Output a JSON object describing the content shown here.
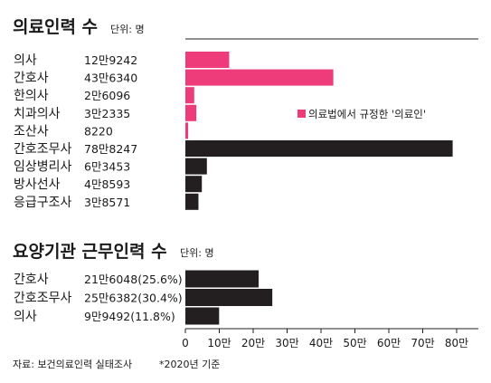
{
  "chart_data": [
    {
      "type": "bar",
      "orientation": "horizontal",
      "title": "의료인력 수",
      "unit": "단위: 명",
      "categories": [
        "의사",
        "간호사",
        "한의사",
        "치과의사",
        "조산사",
        "간호조무사",
        "임상병리사",
        "방사선사",
        "응급구조사"
      ],
      "value_labels": [
        "12만9242",
        "43만6340",
        "2만6096",
        "3만2335",
        "8220",
        "78만8247",
        "6만3453",
        "4만8593",
        "3만8571"
      ],
      "values": [
        129242,
        436340,
        26096,
        32335,
        8220,
        788247,
        63453,
        48593,
        38571
      ],
      "bar_colors": [
        "#ee3b7a",
        "#ee3b7a",
        "#ee3b7a",
        "#ee3b7a",
        "#ee3b7a",
        "#231f20",
        "#231f20",
        "#231f20",
        "#231f20"
      ],
      "legend": {
        "label": "의료법에서 규정한 '의료인'",
        "color": "#ee3b7a",
        "position": "right"
      }
    },
    {
      "type": "bar",
      "orientation": "horizontal",
      "title": "요양기관 근무인력 수",
      "unit": "단위: 명",
      "categories": [
        "간호사",
        "간호조무사",
        "의사"
      ],
      "value_labels": [
        "21만6048(25.6%)",
        "25만6382(30.4%)",
        "9만9492(11.8%)"
      ],
      "values": [
        216048,
        256382,
        99492
      ],
      "bar_colors": [
        "#231f20",
        "#231f20",
        "#231f20"
      ]
    }
  ],
  "axis": {
    "xlim": [
      0,
      800000
    ],
    "ticks": [
      0,
      100000,
      200000,
      300000,
      400000,
      500000,
      600000,
      700000,
      800000
    ],
    "tick_labels": [
      "0",
      "10만",
      "20만",
      "30만",
      "40만",
      "50만",
      "60만",
      "70만",
      "80만"
    ]
  },
  "source": "자료: 보건의료인력 실태조사",
  "note": "*2020년 기준"
}
